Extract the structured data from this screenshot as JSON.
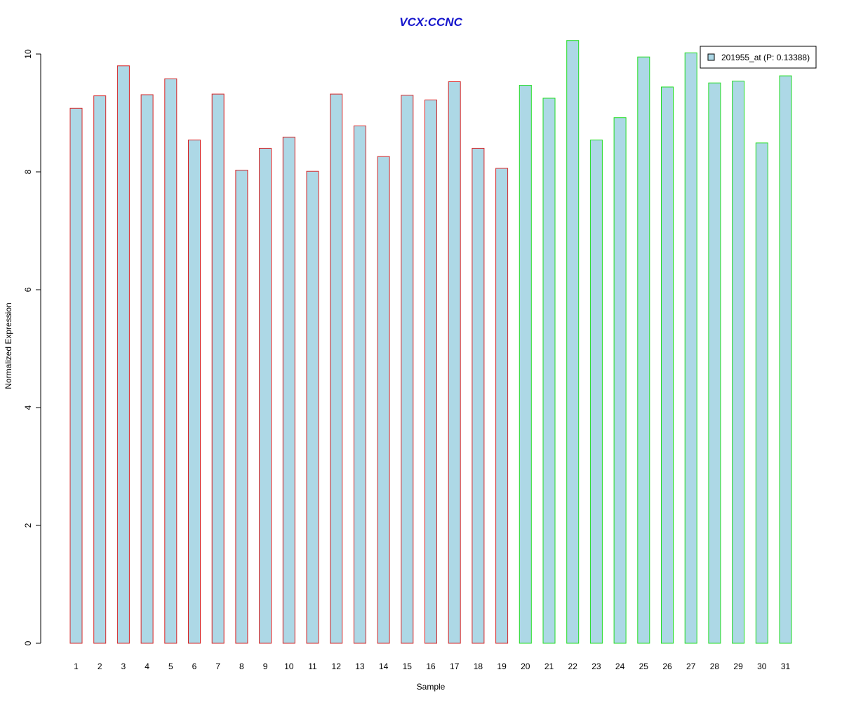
{
  "chart_data": {
    "type": "bar",
    "title": "VCX:CCNC",
    "xlabel": "Sample",
    "ylabel": "Normalized Expression",
    "ylim": [
      0,
      10.3
    ],
    "yticks": [
      0,
      2,
      4,
      6,
      8,
      10
    ],
    "grid": false,
    "legend_position": "top-right",
    "categories": [
      "1",
      "2",
      "3",
      "4",
      "5",
      "6",
      "7",
      "8",
      "9",
      "10",
      "11",
      "12",
      "13",
      "14",
      "15",
      "16",
      "17",
      "18",
      "19",
      "20",
      "21",
      "22",
      "23",
      "24",
      "25",
      "26",
      "27",
      "28",
      "29",
      "30",
      "31"
    ],
    "series": [
      {
        "name": "201955_at (P: 0.13388)",
        "values": [
          9.08,
          9.29,
          9.8,
          9.31,
          9.58,
          8.54,
          9.32,
          8.03,
          8.4,
          8.59,
          8.01,
          9.32,
          8.78,
          8.26,
          9.3,
          9.22,
          9.53,
          8.4,
          8.06,
          9.47,
          9.25,
          10.23,
          8.54,
          8.92,
          9.95,
          9.44,
          10.02,
          9.51,
          9.54,
          8.49,
          9.63
        ]
      }
    ],
    "groups": [
      {
        "from": 1,
        "to": 19,
        "border_color": "#d62728"
      },
      {
        "from": 20,
        "to": 31,
        "border_color": "#22dd22"
      }
    ],
    "bar_fill_color": "#add8e6",
    "title_color": "#1515cc"
  }
}
